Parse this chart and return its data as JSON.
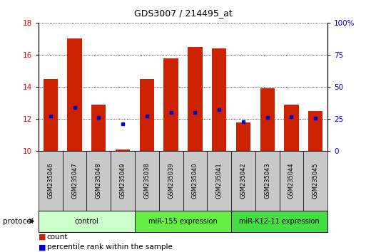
{
  "title": "GDS3007 / 214495_at",
  "samples": [
    "GSM235046",
    "GSM235047",
    "GSM235048",
    "GSM235049",
    "GSM235038",
    "GSM235039",
    "GSM235040",
    "GSM235041",
    "GSM235042",
    "GSM235043",
    "GSM235044",
    "GSM235045"
  ],
  "bar_heights": [
    14.5,
    17.0,
    12.9,
    10.1,
    14.5,
    15.8,
    16.5,
    16.4,
    11.8,
    13.9,
    12.9,
    12.5
  ],
  "blue_y": [
    12.2,
    12.7,
    12.1,
    11.7,
    12.2,
    12.4,
    12.4,
    12.6,
    11.85,
    12.1,
    12.15,
    12.05
  ],
  "bar_bottom": 10.0,
  "ylim": [
    10,
    18
  ],
  "yticks_left": [
    10,
    12,
    14,
    16,
    18
  ],
  "yticks_right": [
    0,
    25,
    50,
    75,
    100
  ],
  "bar_color": "#cc2200",
  "blue_color": "#0000cc",
  "bar_width": 0.6,
  "group_colors": [
    "#ccffcc",
    "#66ee44",
    "#44dd44"
  ],
  "group_labels": [
    "control",
    "miR-155 expression",
    "miR-K12-11 expression"
  ],
  "group_starts": [
    0,
    4,
    8
  ],
  "group_ends": [
    4,
    8,
    12
  ],
  "legend_count_color": "#cc2200",
  "legend_pct_color": "#0000cc",
  "left_tick_color": "red",
  "right_tick_color": "blue",
  "grid_color": "black",
  "sample_box_color": "#c8c8c8",
  "fig_width": 5.13,
  "fig_height": 3.54,
  "dpi": 100
}
